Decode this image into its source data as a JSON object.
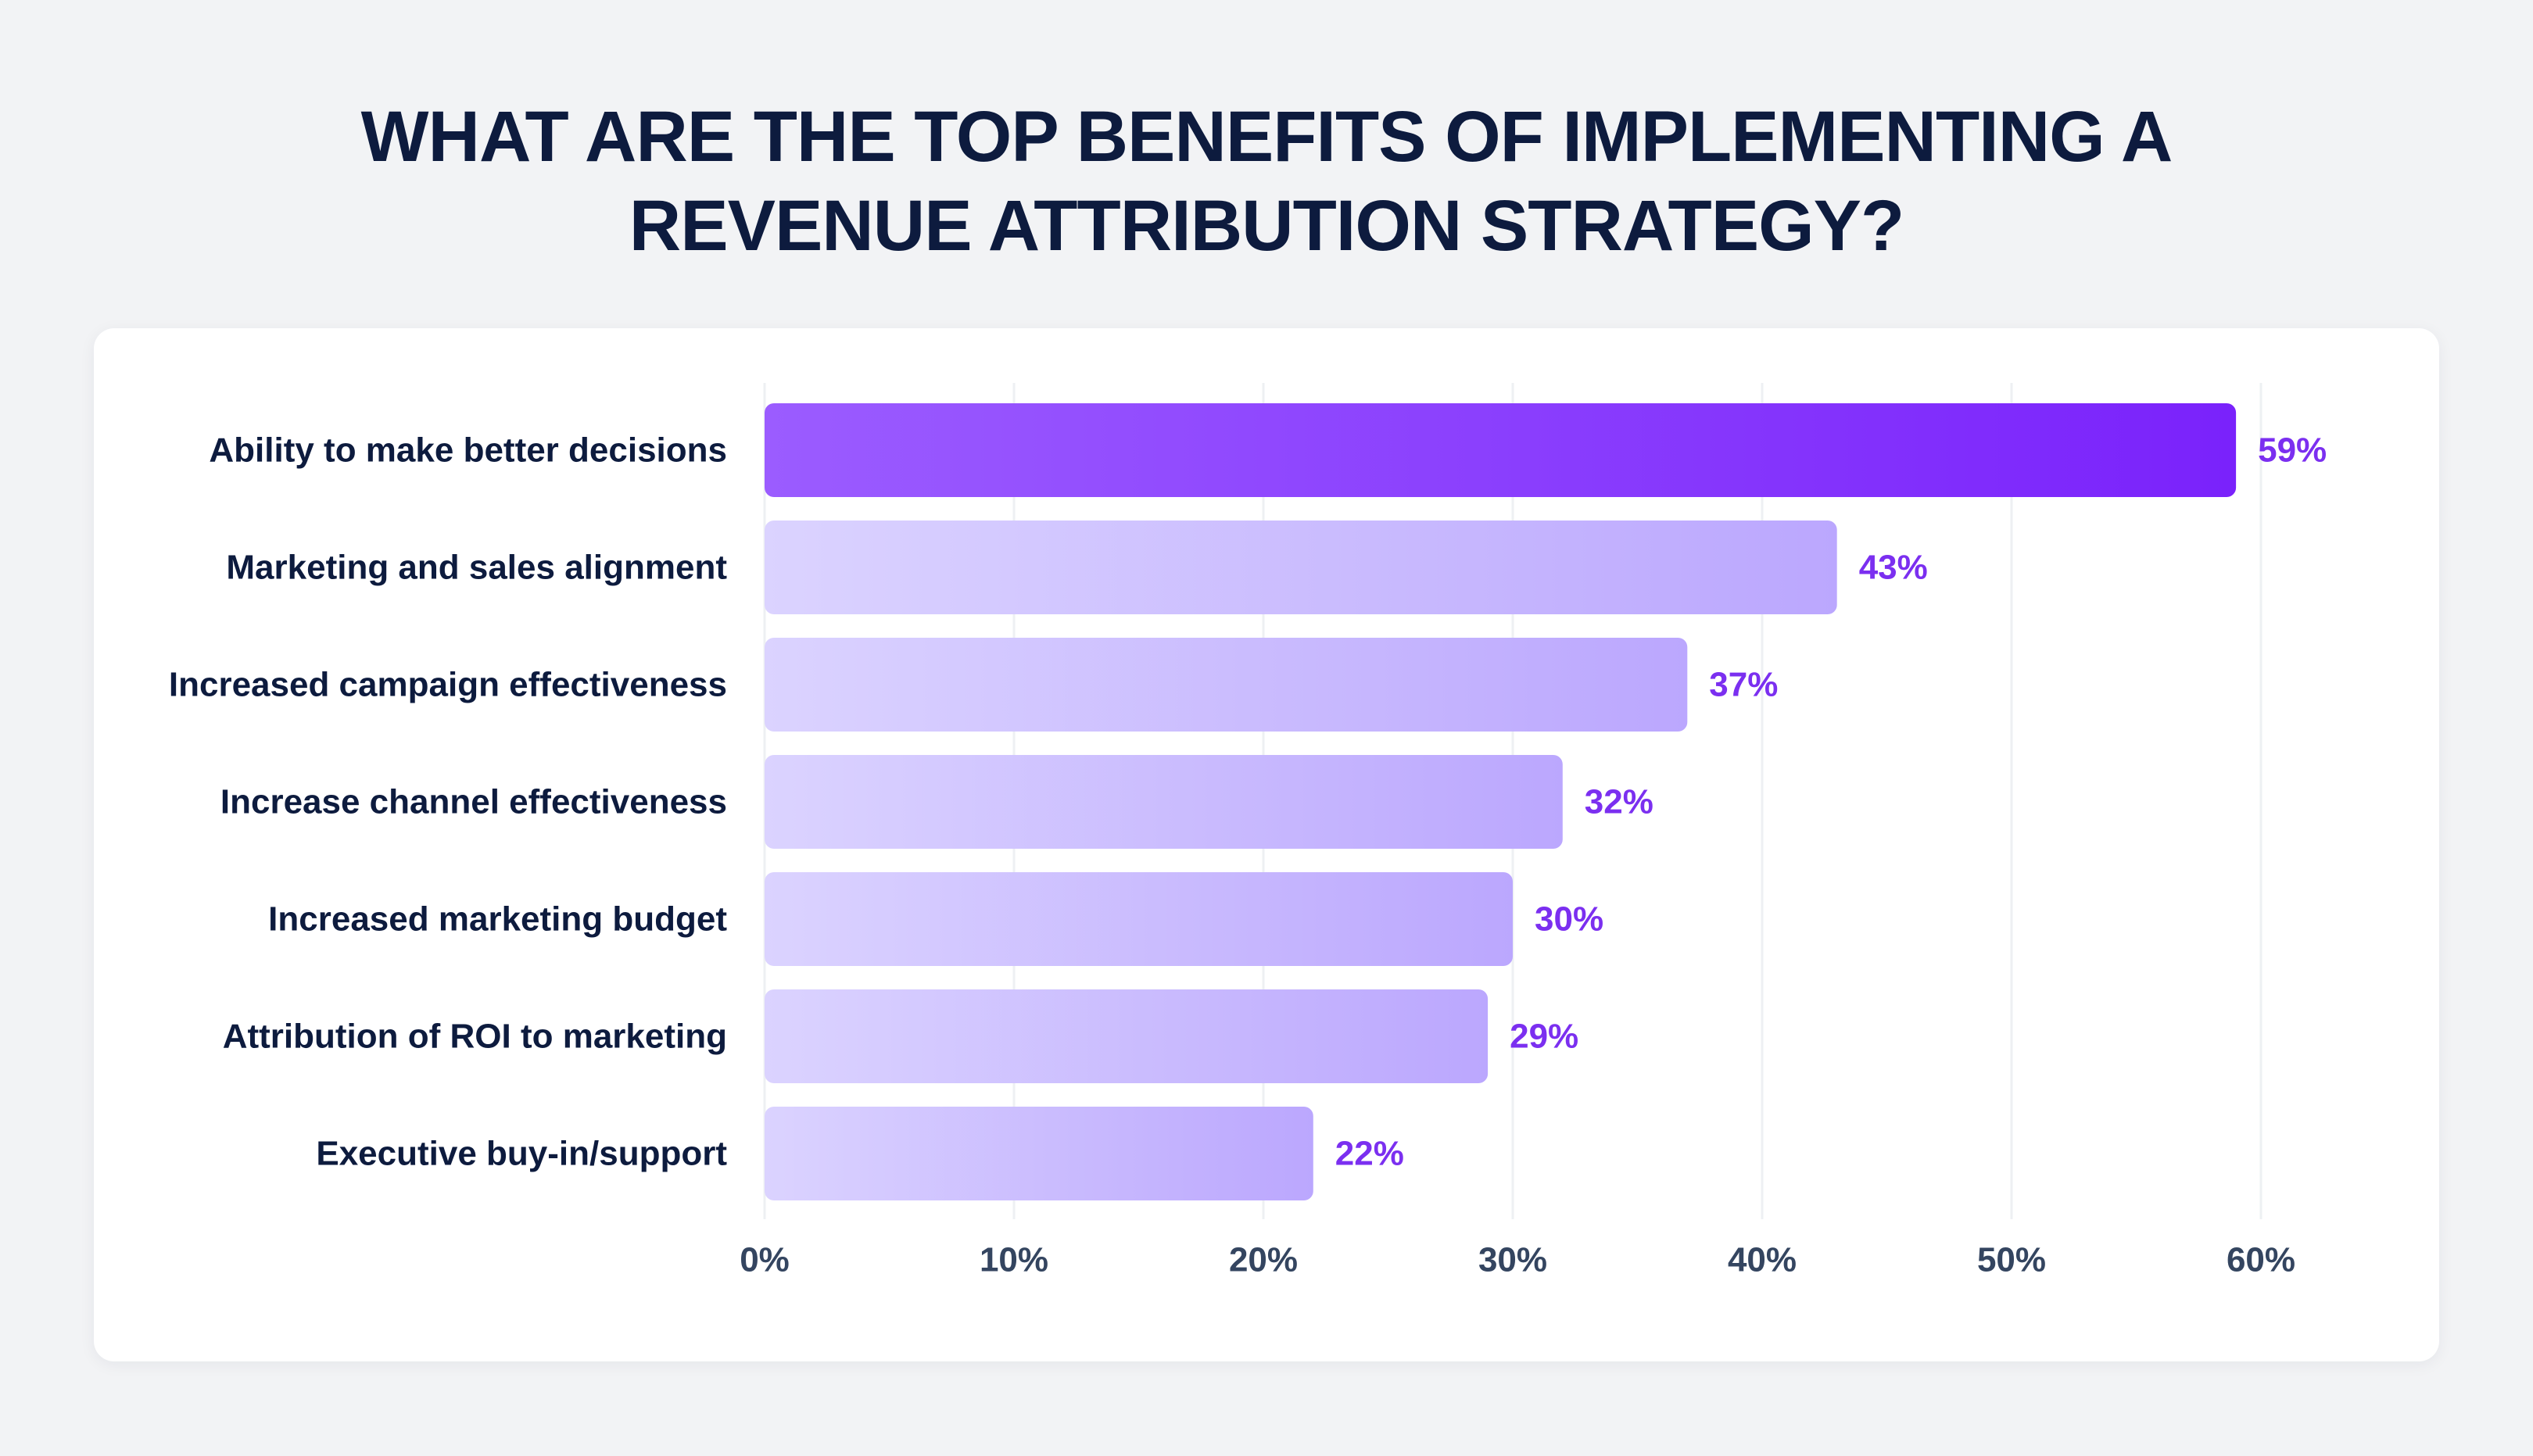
{
  "title_lines": [
    "WHAT ARE THE TOP BENEFITS OF IMPLEMENTING A",
    "REVENUE ATTRIBUTION STRATEGY?"
  ],
  "colors": {
    "background": "#f2f3f5",
    "card": "#ffffff",
    "title": "#0d1b3e",
    "label": "#0d1b3e",
    "value_label": "#7b2ff0",
    "tick_label": "#344560",
    "gridline": "#eef0f3",
    "highlight_bar_start": "#9b5cff",
    "highlight_bar_end": "#7a22fb",
    "bar_start": "#dbd3ff",
    "bar_end": "#bba7fe"
  },
  "chart_data": {
    "type": "bar",
    "orientation": "horizontal",
    "title": "WHAT ARE THE TOP BENEFITS OF IMPLEMENTING A REVENUE ATTRIBUTION STRATEGY?",
    "xlabel": "",
    "ylabel": "",
    "categories": [
      "Ability to make better decisions",
      "Marketing and sales alignment",
      "Increased campaign effectiveness",
      "Increase channel effectiveness",
      "Increased marketing budget",
      "Attribution of ROI to marketing",
      "Executive buy-in/support"
    ],
    "values": [
      59,
      43,
      37,
      32,
      30,
      29,
      22
    ],
    "value_labels": [
      "59%",
      "43%",
      "37%",
      "32%",
      "30%",
      "29%",
      "22%"
    ],
    "highlighted_index": 0,
    "xlim": [
      0,
      60
    ],
    "xticks": [
      0,
      10,
      20,
      30,
      40,
      50,
      60
    ],
    "xtick_labels": [
      "0%",
      "10%",
      "20%",
      "30%",
      "40%",
      "50%",
      "60%"
    ],
    "grid": true,
    "legend": "none"
  }
}
